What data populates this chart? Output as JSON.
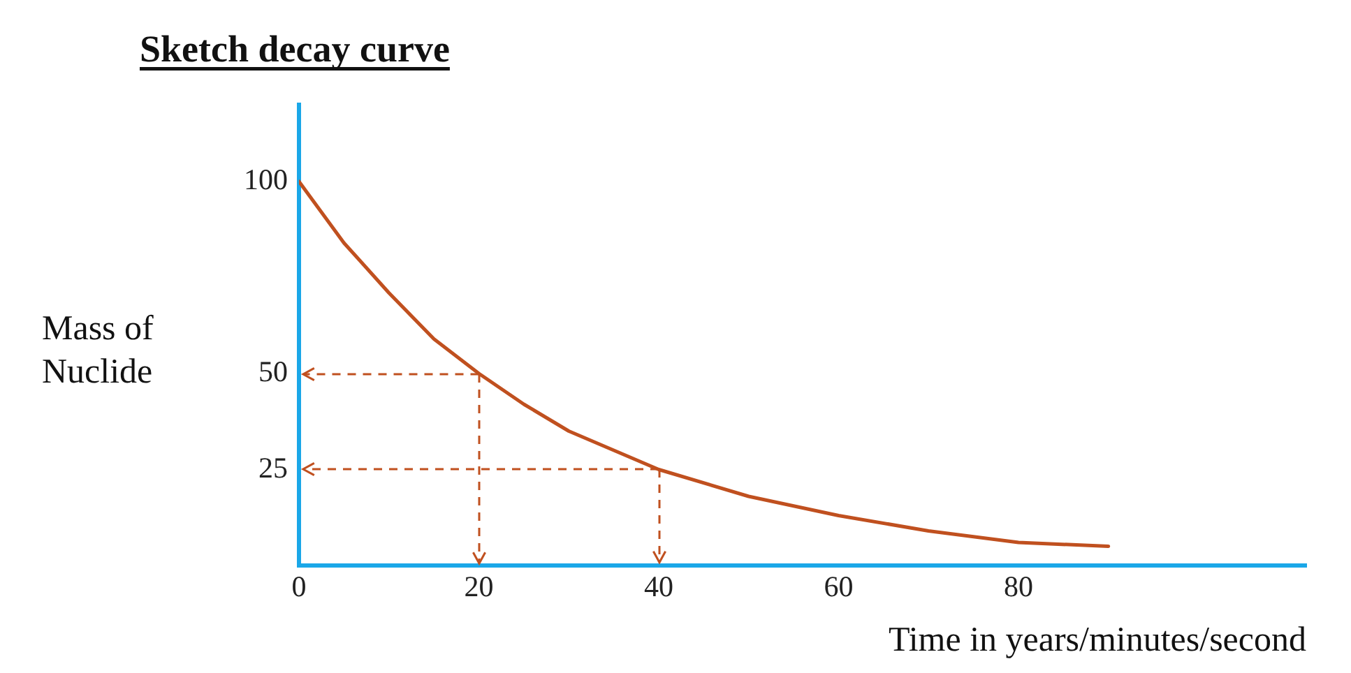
{
  "chart_data": {
    "type": "line",
    "title": "Sketch decay curve",
    "xlabel": "Time in years/minutes/second",
    "ylabel": "Mass of Nuclide",
    "xlim": [
      0,
      112
    ],
    "ylim": [
      0,
      120
    ],
    "xticks": [
      0,
      20,
      40,
      60,
      80
    ],
    "yticks": [
      25,
      50,
      100
    ],
    "grid": false,
    "legend": false,
    "marker": "none",
    "line_style": "solid",
    "series": [
      {
        "color": "#c0501f",
        "x": [
          0,
          5,
          10,
          15,
          20,
          25,
          30,
          35,
          40,
          50,
          60,
          70,
          80,
          90
        ],
        "values": [
          100,
          84,
          71,
          59,
          50,
          42,
          35,
          30,
          25,
          18,
          13,
          9,
          6,
          5
        ]
      }
    ]
  }
}
